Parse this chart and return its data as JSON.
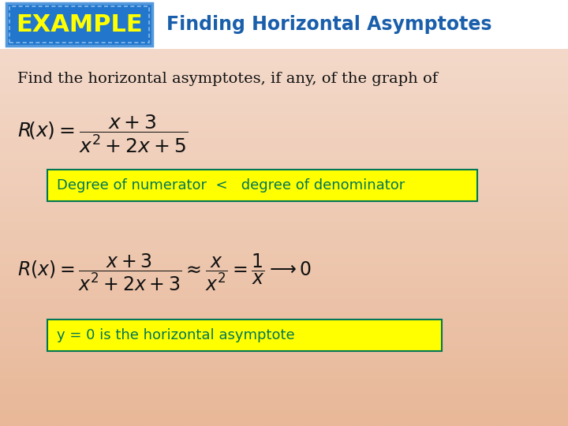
{
  "bg_color_top": "#f5ddd0",
  "bg_color_bottom": "#e8b898",
  "header_bg": "#f0e8e0",
  "title_box_bg": "#2277cc",
  "title_box_border_outer": "#5599dd",
  "title_box_border_inner": "#88bbee",
  "title_text": "EXAMPLE",
  "title_text_color": "#ffff00",
  "subtitle_text": "Finding Horizontal Asymptotes",
  "subtitle_color": "#1a5fab",
  "find_text": "Find the horizontal asymptotes, if any, of the graph of",
  "find_text_color": "#111111",
  "highlight_yellow": "#ffff00",
  "highlight_text_color": "#007755",
  "label1": "Degree of numerator  <   degree of denominator",
  "label2": "y = 0 is the horizontal asymptote",
  "math_color": "#111111",
  "white_bg": "#f8f0e8",
  "header_white": "#ffffff",
  "fig_width": 7.2,
  "fig_height": 5.4,
  "dpi": 100
}
